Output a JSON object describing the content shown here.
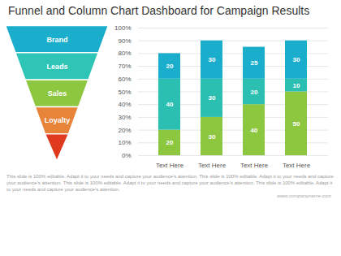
{
  "chart_data": [
    {
      "type": "funnel",
      "categories": [
        "Brand",
        "Leads",
        "Sales",
        "Loyalty",
        null
      ],
      "colors": [
        "#1aaecc",
        "#2ec4b6",
        "#8dc63f",
        "#e8833a",
        "#e03a1e"
      ]
    },
    {
      "type": "bar",
      "title": "Funnel and Column Chart Dashboard for Campaign Results",
      "annotations": [
        "This slide is 100% editable. Adapt it to your needs and capture your audience's attention. This slide is 100% editable. Adapt it to your needs and capture your audience's attention. This slide is 100% editable. Adapt it to your needs and capture your audience's attention. This slide is 100% editable. Adapt it to your needs and capture your audience's attention.",
        "www.companyname.com"
      ],
      "categories": [
        "Text Here",
        "Text Here",
        "Text Here",
        "Text Here"
      ],
      "series": [
        {
          "color": "#8dc63f",
          "values": [
            20,
            30,
            40,
            50
          ]
        },
        {
          "color": "#2abfb0",
          "values": [
            40,
            30,
            20,
            10
          ]
        },
        {
          "color": "#1aaecc",
          "values": [
            20,
            30,
            25,
            30
          ]
        }
      ],
      "stacked": true,
      "data_labels": true,
      "grid": true,
      "ylim": [
        0,
        100
      ],
      "yticks": [
        {
          "value": 0,
          "label": "0%"
        },
        {
          "value": 10,
          "label": "10%"
        },
        {
          "value": 20,
          "label": "20%"
        },
        {
          "value": 30,
          "label": "30%"
        },
        {
          "value": 40,
          "label": "40%"
        },
        {
          "value": 50,
          "label": "50%"
        },
        {
          "value": 60,
          "label": "60%"
        },
        {
          "value": 70,
          "label": "70%"
        },
        {
          "value": 80,
          "label": "80%"
        },
        {
          "value": 90,
          "label": "90%"
        },
        {
          "value": 100,
          "label": "100%"
        }
      ]
    }
  ]
}
